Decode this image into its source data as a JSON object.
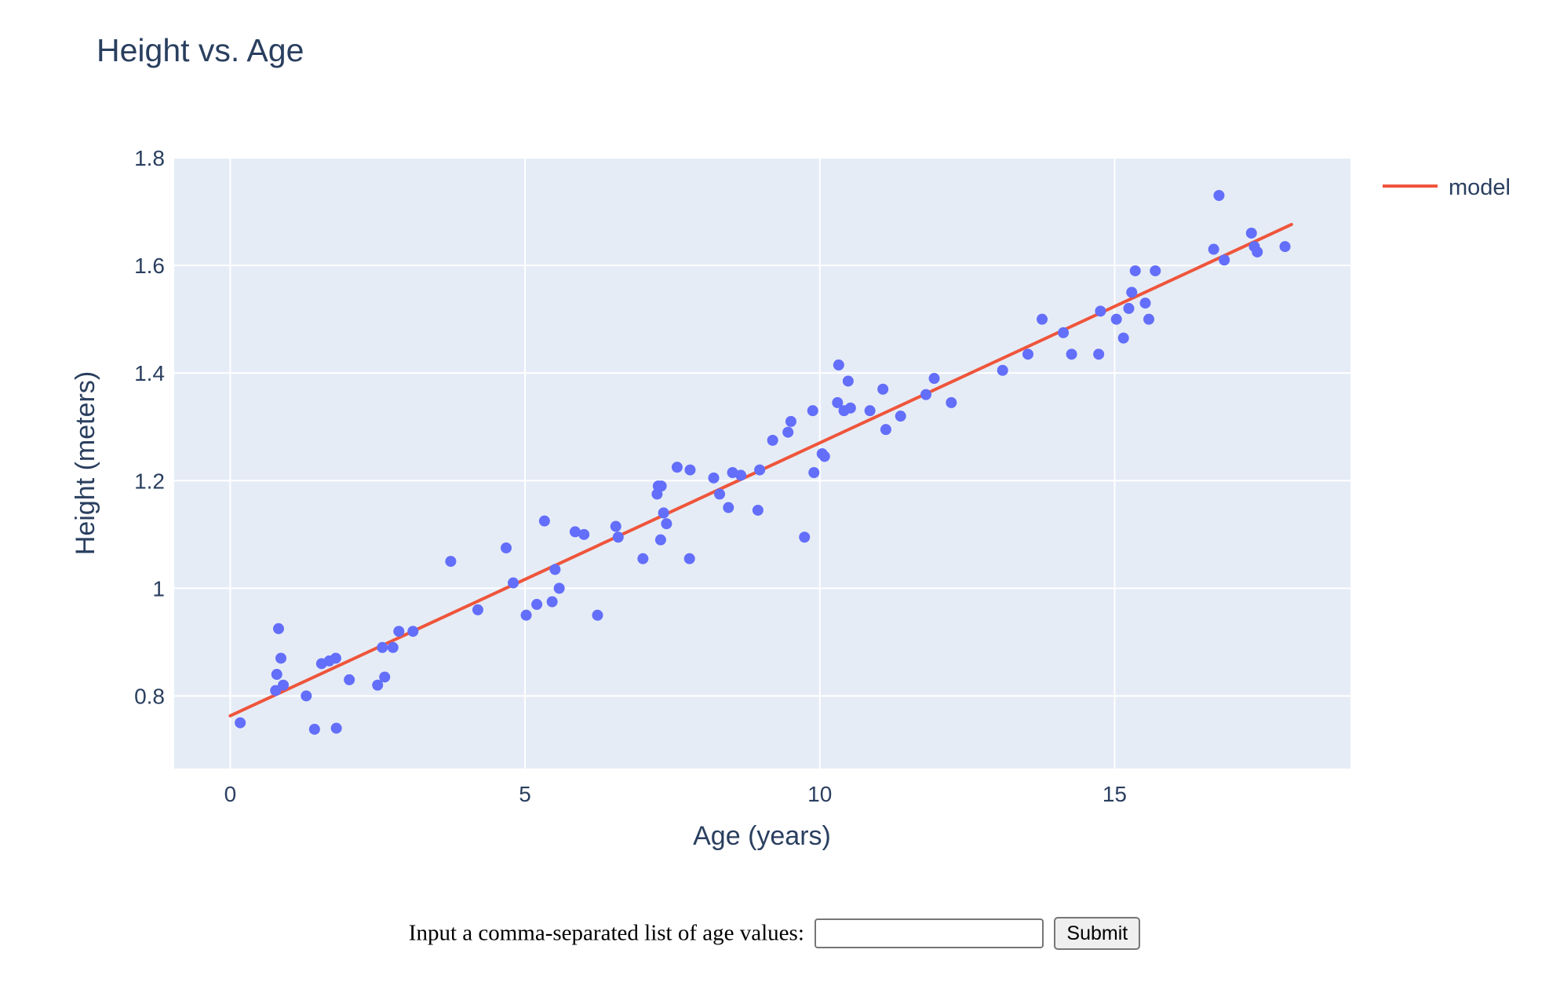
{
  "page": {
    "input_label": "Input a comma-separated list of age values:",
    "input_value": "",
    "input_placeholder": "",
    "submit_label": "Submit"
  },
  "chart_data": {
    "type": "scatter",
    "title": "Height vs. Age",
    "xlabel": "Age (years)",
    "ylabel": "Height (meters)",
    "xlim": [
      -0.95,
      19
    ],
    "ylim": [
      0.665,
      1.8
    ],
    "xticks": [
      0,
      5,
      10,
      15
    ],
    "xtick_labels": [
      "0",
      "5",
      "10",
      "15"
    ],
    "yticks": [
      0.8,
      1.0,
      1.2,
      1.4,
      1.6,
      1.8
    ],
    "ytick_labels": [
      "0.8",
      "1",
      "1.2",
      "1.4",
      "1.6",
      "1.8"
    ],
    "grid": true,
    "legend_position": "top-right",
    "colors": {
      "background": "#e5ecf6",
      "grid": "#ffffff",
      "points": "#636efa",
      "model": "#ef553b",
      "text": "#2a3f5f"
    },
    "series": [
      {
        "kind": "markers",
        "points": [
          [
            0.17,
            0.75
          ],
          [
            0.77,
            0.81
          ],
          [
            0.79,
            0.84
          ],
          [
            0.82,
            0.925
          ],
          [
            0.86,
            0.87
          ],
          [
            0.9,
            0.82
          ],
          [
            1.29,
            0.8
          ],
          [
            1.43,
            0.738
          ],
          [
            1.55,
            0.86
          ],
          [
            1.68,
            0.865
          ],
          [
            1.79,
            0.87
          ],
          [
            1.8,
            0.74
          ],
          [
            2.02,
            0.83
          ],
          [
            2.5,
            0.82
          ],
          [
            2.58,
            0.89
          ],
          [
            2.62,
            0.835
          ],
          [
            2.76,
            0.89
          ],
          [
            2.86,
            0.92
          ],
          [
            3.1,
            0.92
          ],
          [
            3.74,
            1.05
          ],
          [
            4.2,
            0.96
          ],
          [
            4.68,
            1.075
          ],
          [
            4.8,
            1.01
          ],
          [
            5.02,
            0.95
          ],
          [
            5.2,
            0.97
          ],
          [
            5.33,
            1.125
          ],
          [
            5.46,
            0.975
          ],
          [
            5.51,
            1.035
          ],
          [
            5.58,
            1.0
          ],
          [
            5.85,
            1.105
          ],
          [
            6.0,
            1.1
          ],
          [
            6.23,
            0.95
          ],
          [
            6.54,
            1.115
          ],
          [
            6.58,
            1.095
          ],
          [
            7.0,
            1.055
          ],
          [
            7.24,
            1.175
          ],
          [
            7.26,
            1.19
          ],
          [
            7.3,
            1.09
          ],
          [
            7.31,
            1.19
          ],
          [
            7.35,
            1.14
          ],
          [
            7.4,
            1.12
          ],
          [
            7.58,
            1.225
          ],
          [
            7.79,
            1.055
          ],
          [
            7.8,
            1.22
          ],
          [
            8.2,
            1.205
          ],
          [
            8.3,
            1.175
          ],
          [
            8.45,
            1.15
          ],
          [
            8.52,
            1.215
          ],
          [
            8.66,
            1.21
          ],
          [
            8.95,
            1.145
          ],
          [
            8.98,
            1.22
          ],
          [
            9.2,
            1.275
          ],
          [
            9.46,
            1.29
          ],
          [
            9.51,
            1.31
          ],
          [
            9.74,
            1.095
          ],
          [
            9.88,
            1.33
          ],
          [
            9.9,
            1.215
          ],
          [
            10.04,
            1.25
          ],
          [
            10.08,
            1.245
          ],
          [
            10.3,
            1.345
          ],
          [
            10.32,
            1.415
          ],
          [
            10.41,
            1.33
          ],
          [
            10.48,
            1.385
          ],
          [
            10.52,
            1.335
          ],
          [
            10.85,
            1.33
          ],
          [
            11.07,
            1.37
          ],
          [
            11.12,
            1.295
          ],
          [
            11.37,
            1.32
          ],
          [
            11.8,
            1.36
          ],
          [
            11.94,
            1.39
          ],
          [
            12.23,
            1.345
          ],
          [
            13.1,
            1.405
          ],
          [
            13.53,
            1.435
          ],
          [
            13.77,
            1.5
          ],
          [
            14.13,
            1.475
          ],
          [
            14.27,
            1.435
          ],
          [
            14.73,
            1.435
          ],
          [
            14.76,
            1.515
          ],
          [
            15.03,
            1.5
          ],
          [
            15.15,
            1.465
          ],
          [
            15.24,
            1.52
          ],
          [
            15.29,
            1.55
          ],
          [
            15.35,
            1.59
          ],
          [
            15.52,
            1.53
          ],
          [
            15.58,
            1.5
          ],
          [
            15.69,
            1.59
          ],
          [
            16.68,
            1.63
          ],
          [
            16.77,
            1.73
          ],
          [
            16.86,
            1.61
          ],
          [
            17.32,
            1.66
          ],
          [
            17.37,
            1.635
          ],
          [
            17.42,
            1.625
          ],
          [
            17.89,
            1.635
          ]
        ]
      },
      {
        "name": "model",
        "kind": "line",
        "points": [
          [
            0,
            0.763
          ],
          [
            18,
            1.676
          ]
        ]
      }
    ]
  }
}
